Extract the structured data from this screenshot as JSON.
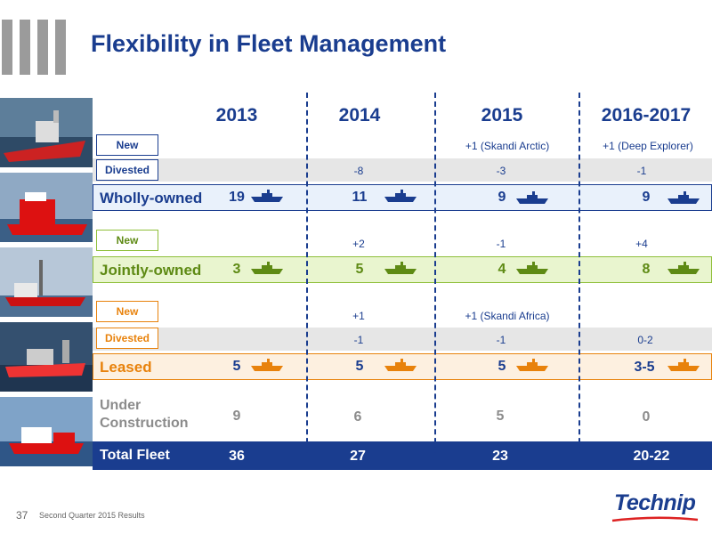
{
  "title": "Flexibility in Fleet Management",
  "years": [
    "2013",
    "2014",
    "2015",
    "2016-2017"
  ],
  "tags": {
    "new": "New",
    "divested": "Divested"
  },
  "wholly": {
    "label": "Wholly-owned",
    "new": [
      "",
      "",
      "+1 (Skandi Arctic)",
      "+1 (Deep Explorer)"
    ],
    "divested": [
      "",
      "-8",
      "-3",
      "-1"
    ],
    "values": [
      "19",
      "11",
      "9",
      "9"
    ]
  },
  "jointly": {
    "label": "Jointly-owned",
    "new": [
      "",
      "+2",
      "-1",
      "+4"
    ],
    "values": [
      "3",
      "5",
      "4",
      "8"
    ]
  },
  "leased": {
    "label": "Leased",
    "new": [
      "",
      "+1",
      "+1 (Skandi Africa)",
      ""
    ],
    "divested": [
      "",
      "-1",
      "-1",
      "0-2"
    ],
    "values": [
      "5",
      "5",
      "5",
      "3-5"
    ]
  },
  "under_construction": {
    "label_line1": "Under",
    "label_line2": "Construction",
    "values": [
      "9",
      "6",
      "5",
      "0"
    ]
  },
  "total": {
    "label": "Total Fleet",
    "values": [
      "36",
      "27",
      "23",
      "20-22"
    ]
  },
  "footer": {
    "page": "37",
    "text": "Second Quarter 2015 Results"
  },
  "logo": "Technip",
  "colors": {
    "wholly": "#1a3d8f",
    "jointly": "#5e8a14",
    "leased": "#e8820c",
    "uc": "#8c8c8c",
    "total_bg": "#1a3d8f"
  }
}
